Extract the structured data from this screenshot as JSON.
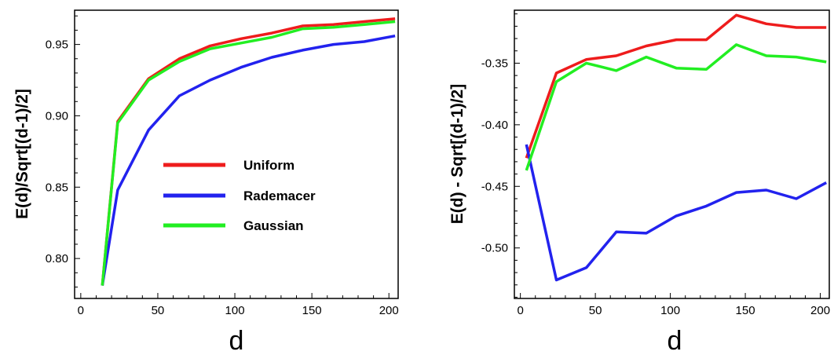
{
  "chart_data": [
    {
      "type": "line",
      "xlabel": "d",
      "ylabel": "E(d)/Sqrt[(d-1)/2]",
      "xlim": [
        -4,
        206
      ],
      "ylim": [
        0.772,
        0.974
      ],
      "xticks": [
        0,
        50,
        100,
        150,
        200
      ],
      "yticks": [
        0.8,
        0.85,
        0.9,
        0.95
      ],
      "ytick_labels": [
        "0.80",
        "0.85",
        "0.90",
        "0.95"
      ],
      "grid": false,
      "legend": "center",
      "series": [
        {
          "name": "Uniform",
          "color": "#ee1c1c",
          "x": [
            14,
            24,
            44,
            64,
            84,
            104,
            124,
            144,
            164,
            184,
            204
          ],
          "y": [
            0.781,
            0.896,
            0.926,
            0.94,
            0.949,
            0.954,
            0.958,
            0.963,
            0.964,
            0.966,
            0.968
          ]
        },
        {
          "name": "Rademacer",
          "color": "#2222ee",
          "x": [
            14,
            24,
            44,
            64,
            84,
            104,
            124,
            144,
            164,
            184,
            204
          ],
          "y": [
            0.781,
            0.848,
            0.89,
            0.914,
            0.925,
            0.934,
            0.941,
            0.946,
            0.95,
            0.952,
            0.956
          ]
        },
        {
          "name": "Gaussian",
          "color": "#22ee22",
          "x": [
            14,
            24,
            44,
            64,
            84,
            104,
            124,
            144,
            164,
            184,
            204
          ],
          "y": [
            0.781,
            0.895,
            0.925,
            0.938,
            0.947,
            0.951,
            0.955,
            0.961,
            0.962,
            0.964,
            0.966
          ]
        }
      ]
    },
    {
      "type": "line",
      "xlabel": "d",
      "ylabel": "E(d) - Sqrt[(d-1)/2]",
      "xlim": [
        -4,
        206
      ],
      "ylim": [
        -0.541,
        -0.307
      ],
      "xticks": [
        0,
        50,
        100,
        150,
        200
      ],
      "yticks": [
        -0.5,
        -0.45,
        -0.4,
        -0.35
      ],
      "ytick_labels": [
        "-0.50",
        "-0.45",
        "-0.40",
        "-0.35"
      ],
      "grid": false,
      "series": [
        {
          "name": "Uniform",
          "color": "#ee1c1c",
          "x": [
            4,
            24,
            44,
            64,
            84,
            104,
            124,
            144,
            164,
            184,
            204
          ],
          "y": [
            -0.427,
            -0.358,
            -0.347,
            -0.344,
            -0.336,
            -0.331,
            -0.331,
            -0.311,
            -0.318,
            -0.321,
            -0.321
          ]
        },
        {
          "name": "Rademacer",
          "color": "#2222ee",
          "x": [
            4,
            24,
            44,
            64,
            84,
            104,
            124,
            144,
            164,
            184,
            204
          ],
          "y": [
            -0.416,
            -0.526,
            -0.516,
            -0.487,
            -0.488,
            -0.474,
            -0.466,
            -0.455,
            -0.453,
            -0.46,
            -0.447
          ]
        },
        {
          "name": "Gaussian",
          "color": "#22ee22",
          "x": [
            4,
            24,
            44,
            64,
            84,
            104,
            124,
            144,
            164,
            184,
            204
          ],
          "y": [
            -0.437,
            -0.365,
            -0.35,
            -0.356,
            -0.345,
            -0.354,
            -0.355,
            -0.335,
            -0.344,
            -0.345,
            -0.349
          ]
        }
      ]
    }
  ]
}
